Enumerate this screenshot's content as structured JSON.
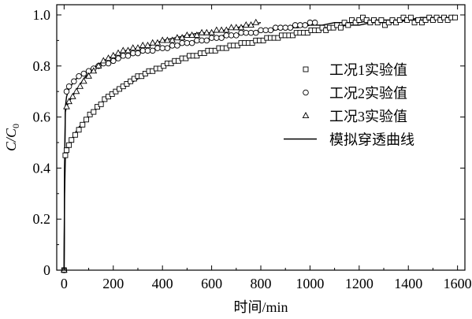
{
  "chart_data": {
    "type": "scatter",
    "xlabel": "时间/min",
    "ylabel_main": "C/C",
    "ylabel_sub": "0",
    "xlim": [
      -30,
      1630
    ],
    "ylim": [
      0,
      1.04
    ],
    "xticks": [
      "0",
      "200",
      "400",
      "600",
      "800",
      "1000",
      "1200",
      "1400",
      "1600"
    ],
    "xtick_values": [
      0,
      200,
      400,
      600,
      800,
      1000,
      1200,
      1400,
      1600
    ],
    "yticks": [
      "0",
      "0.2",
      "0.4",
      "0.6",
      "0.8",
      "1.0"
    ],
    "ytick_values": [
      0,
      0.2,
      0.4,
      0.6,
      0.8,
      1.0
    ],
    "legend_position": "right-center",
    "series": [
      {
        "name": "工况1实验值",
        "marker": "square",
        "x": [
          0,
          5,
          10,
          20,
          30,
          45,
          60,
          75,
          90,
          105,
          120,
          135,
          150,
          165,
          180,
          195,
          210,
          225,
          240,
          255,
          270,
          285,
          300,
          315,
          330,
          345,
          360,
          375,
          390,
          405,
          420,
          435,
          450,
          465,
          480,
          495,
          510,
          525,
          540,
          555,
          570,
          585,
          600,
          615,
          630,
          645,
          660,
          675,
          690,
          705,
          720,
          735,
          750,
          765,
          780,
          795,
          810,
          825,
          840,
          855,
          870,
          885,
          900,
          915,
          930,
          945,
          960,
          975,
          990,
          1005,
          1020,
          1035,
          1050,
          1065,
          1080,
          1095,
          1110,
          1125,
          1140,
          1155,
          1170,
          1185,
          1200,
          1215,
          1230,
          1245,
          1260,
          1275,
          1290,
          1305,
          1320,
          1335,
          1350,
          1365,
          1380,
          1395,
          1410,
          1425,
          1440,
          1455,
          1470,
          1485,
          1500,
          1515,
          1530,
          1545,
          1560,
          1575,
          1590
        ],
        "y": [
          0,
          0.45,
          0.47,
          0.49,
          0.51,
          0.53,
          0.55,
          0.57,
          0.59,
          0.61,
          0.62,
          0.64,
          0.65,
          0.67,
          0.68,
          0.69,
          0.7,
          0.71,
          0.72,
          0.73,
          0.74,
          0.75,
          0.76,
          0.76,
          0.77,
          0.78,
          0.78,
          0.79,
          0.79,
          0.8,
          0.81,
          0.81,
          0.82,
          0.82,
          0.83,
          0.83,
          0.84,
          0.84,
          0.84,
          0.85,
          0.85,
          0.86,
          0.86,
          0.86,
          0.87,
          0.87,
          0.87,
          0.88,
          0.88,
          0.88,
          0.89,
          0.89,
          0.89,
          0.89,
          0.9,
          0.9,
          0.9,
          0.91,
          0.91,
          0.91,
          0.91,
          0.92,
          0.92,
          0.92,
          0.92,
          0.93,
          0.93,
          0.93,
          0.93,
          0.94,
          0.94,
          0.94,
          0.95,
          0.94,
          0.95,
          0.95,
          0.96,
          0.95,
          0.97,
          0.96,
          0.98,
          0.97,
          0.98,
          0.99,
          0.98,
          0.97,
          0.98,
          0.97,
          0.98,
          0.96,
          0.97,
          0.98,
          0.97,
          0.98,
          0.99,
          0.98,
          0.99,
          0.97,
          0.98,
          0.97,
          0.98,
          0.99,
          0.98,
          0.99,
          0.98,
          0.99,
          0.98,
          0.99,
          0.99
        ]
      },
      {
        "name": "工况2实验值",
        "marker": "circle",
        "x": [
          0,
          10,
          20,
          40,
          60,
          80,
          100,
          120,
          140,
          160,
          180,
          200,
          220,
          240,
          260,
          280,
          300,
          320,
          340,
          360,
          380,
          400,
          420,
          440,
          460,
          480,
          500,
          520,
          540,
          560,
          580,
          600,
          620,
          640,
          660,
          680,
          700,
          720,
          740,
          760,
          780,
          800,
          820,
          840,
          860,
          880,
          900,
          920,
          940,
          960,
          980,
          1000,
          1020
        ],
        "y": [
          0,
          0.7,
          0.72,
          0.74,
          0.76,
          0.77,
          0.78,
          0.79,
          0.8,
          0.81,
          0.81,
          0.82,
          0.83,
          0.84,
          0.84,
          0.85,
          0.85,
          0.86,
          0.86,
          0.86,
          0.87,
          0.87,
          0.87,
          0.88,
          0.88,
          0.89,
          0.89,
          0.89,
          0.9,
          0.9,
          0.9,
          0.91,
          0.91,
          0.91,
          0.92,
          0.92,
          0.92,
          0.93,
          0.93,
          0.93,
          0.93,
          0.94,
          0.94,
          0.94,
          0.95,
          0.95,
          0.95,
          0.95,
          0.96,
          0.96,
          0.96,
          0.97,
          0.97
        ]
      },
      {
        "name": "工况3实验值",
        "marker": "triangle",
        "x": [
          0,
          10,
          20,
          35,
          50,
          65,
          80,
          100,
          120,
          140,
          160,
          180,
          200,
          220,
          240,
          260,
          280,
          300,
          320,
          340,
          360,
          380,
          400,
          420,
          440,
          460,
          480,
          500,
          520,
          540,
          560,
          580,
          600,
          620,
          640,
          660,
          680,
          700,
          720,
          740,
          760,
          780
        ],
        "y": [
          0,
          0.64,
          0.66,
          0.68,
          0.7,
          0.72,
          0.74,
          0.76,
          0.78,
          0.8,
          0.82,
          0.83,
          0.84,
          0.85,
          0.86,
          0.86,
          0.87,
          0.87,
          0.88,
          0.88,
          0.89,
          0.89,
          0.9,
          0.9,
          0.9,
          0.91,
          0.91,
          0.92,
          0.92,
          0.92,
          0.93,
          0.93,
          0.93,
          0.94,
          0.94,
          0.94,
          0.95,
          0.95,
          0.95,
          0.96,
          0.96,
          0.97
        ]
      },
      {
        "name": "模拟穿透曲线",
        "marker": "line",
        "curves": [
          {
            "x": [
              0,
              2,
              5,
              10,
              20,
              40,
              60,
              80,
              100,
              130,
              160,
              200,
              250,
              300,
              350,
              400,
              450,
              500,
              550,
              600,
              650,
              700,
              750,
              800,
              850,
              900,
              950,
              1000,
              1050,
              1100,
              1150,
              1200,
              1250,
              1300,
              1350,
              1400,
              1450,
              1500,
              1550,
              1600
            ],
            "y": [
              0,
              0.3,
              0.44,
              0.47,
              0.49,
              0.53,
              0.56,
              0.58,
              0.6,
              0.63,
              0.66,
              0.69,
              0.72,
              0.75,
              0.78,
              0.8,
              0.82,
              0.83,
              0.85,
              0.86,
              0.87,
              0.88,
              0.89,
              0.9,
              0.91,
              0.92,
              0.93,
              0.94,
              0.95,
              0.95,
              0.96,
              0.96,
              0.97,
              0.97,
              0.97,
              0.98,
              0.98,
              0.98,
              0.99,
              0.99
            ]
          },
          {
            "x": [
              0,
              2,
              5,
              10,
              20,
              40,
              60,
              80,
              100,
              130,
              160,
              200,
              250,
              300,
              350,
              400,
              450,
              500,
              550,
              600,
              650,
              700,
              750,
              800,
              850,
              900,
              950,
              1000,
              1050,
              1100,
              1150,
              1200,
              1250,
              1300,
              1350,
              1400,
              1450,
              1500,
              1550,
              1600
            ],
            "y": [
              0,
              0.4,
              0.64,
              0.68,
              0.71,
              0.74,
              0.76,
              0.77,
              0.78,
              0.8,
              0.81,
              0.83,
              0.84,
              0.85,
              0.86,
              0.87,
              0.88,
              0.89,
              0.9,
              0.91,
              0.92,
              0.92,
              0.93,
              0.94,
              0.94,
              0.95,
              0.95,
              0.96,
              0.96,
              0.97,
              0.97,
              0.97,
              0.98,
              0.98,
              0.98,
              0.98,
              0.99,
              0.99,
              0.99,
              0.99
            ]
          },
          {
            "x": [
              0,
              2,
              5,
              10,
              20,
              40,
              60,
              80,
              100,
              130,
              160,
              200,
              250,
              300,
              350,
              400,
              450,
              500,
              550,
              600,
              650,
              700,
              750,
              800
            ],
            "y": [
              0,
              0.4,
              0.62,
              0.64,
              0.66,
              0.69,
              0.72,
              0.75,
              0.77,
              0.8,
              0.82,
              0.84,
              0.86,
              0.87,
              0.88,
              0.9,
              0.91,
              0.92,
              0.93,
              0.93,
              0.94,
              0.95,
              0.96,
              0.97
            ]
          }
        ]
      }
    ]
  }
}
